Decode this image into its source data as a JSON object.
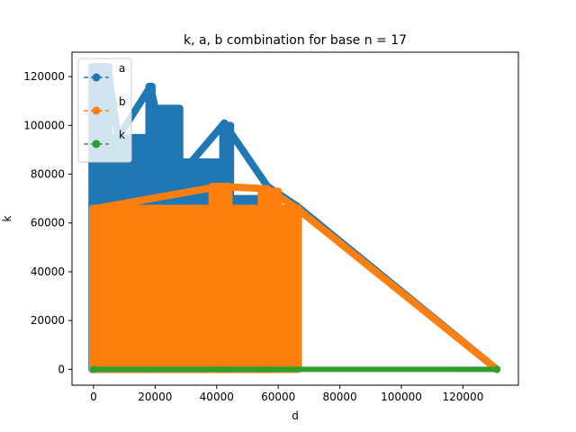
{
  "chart_data": {
    "type": "line",
    "title": "k, a, b combination for base n = 17",
    "xlabel": "d",
    "ylabel": "k",
    "xlim": [
      -7000,
      138000
    ],
    "ylim": [
      -6500,
      130000
    ],
    "xticks": [
      0,
      20000,
      40000,
      60000,
      80000,
      100000,
      120000
    ],
    "yticks": [
      0,
      20000,
      40000,
      60000,
      80000,
      100000,
      120000
    ],
    "xtick_labels": [
      "0",
      "20000",
      "40000",
      "60000",
      "80000",
      "100000",
      "120000"
    ],
    "ytick_labels": [
      "0",
      "20000",
      "40000",
      "60000",
      "80000",
      "100000",
      "120000"
    ],
    "legend_position": "upper-left",
    "grid": false,
    "marker": "circle",
    "linestyle": "dashed",
    "series": [
      {
        "name": "a",
        "color": "#1f77b4",
        "bands": [
          {
            "x0": -500,
            "x1": 5000,
            "y0": 0,
            "y1": 124000
          },
          {
            "x0": 5000,
            "x1": 18000,
            "y0": 0,
            "y1": 95000
          },
          {
            "x0": 18000,
            "x1": 19000,
            "y0": 0,
            "y1": 116000
          },
          {
            "x0": 19000,
            "x1": 28000,
            "y0": 0,
            "y1": 107000
          },
          {
            "x0": 28000,
            "x1": 42000,
            "y0": 0,
            "y1": 85000
          },
          {
            "x0": 42000,
            "x1": 44500,
            "y0": 0,
            "y1": 100000
          },
          {
            "x0": 44500,
            "x1": 56500,
            "y0": 0,
            "y1": 70000
          }
        ],
        "points": [
          [
            0,
            0
          ],
          [
            1500,
            124000
          ],
          [
            4500,
            124000
          ],
          [
            8000,
            95000
          ],
          [
            18500,
            116000
          ],
          [
            20000,
            107000
          ],
          [
            27000,
            78000
          ],
          [
            42500,
            101000
          ],
          [
            44000,
            98000
          ],
          [
            56500,
            75000
          ],
          [
            66000,
            67000
          ],
          [
            131000,
            0
          ]
        ]
      },
      {
        "name": "b",
        "color": "#ff7f0e",
        "bands": [
          {
            "x0": -300,
            "x1": 66500,
            "y0": 0,
            "y1": 66000
          },
          {
            "x0": 38500,
            "x1": 44000,
            "y0": 0,
            "y1": 75000
          },
          {
            "x0": 54500,
            "x1": 60000,
            "y0": 0,
            "y1": 73000
          }
        ],
        "points": [
          [
            0,
            0
          ],
          [
            1000,
            66000
          ],
          [
            41000,
            75000
          ],
          [
            56500,
            74000
          ],
          [
            66000,
            66000
          ],
          [
            131000,
            0
          ]
        ]
      },
      {
        "name": "k",
        "color": "#2ca02c",
        "points": [
          [
            0,
            0
          ],
          [
            131000,
            0
          ]
        ]
      }
    ]
  }
}
